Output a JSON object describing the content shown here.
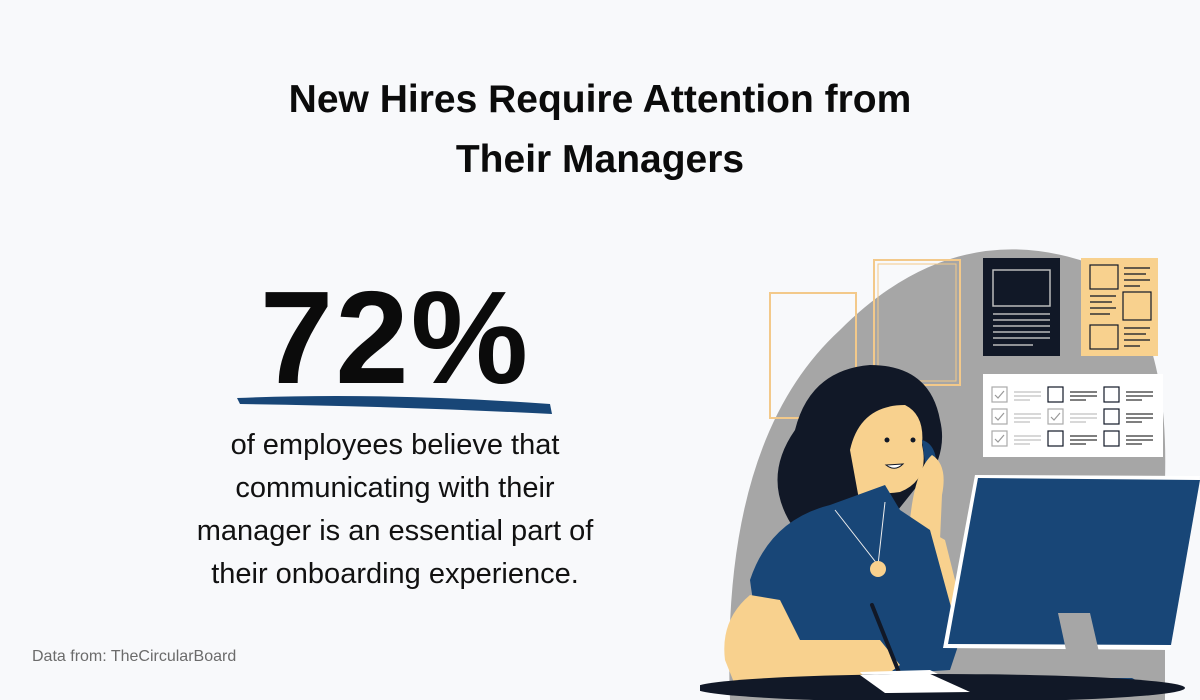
{
  "title": {
    "line1": "New Hires Require Attention from",
    "line2": "Their Managers"
  },
  "stat": {
    "value": "72%"
  },
  "description": {
    "lines": [
      "of employees believe that",
      "communicating with their",
      "manager is an essential part of",
      "their onboarding experience."
    ]
  },
  "source": "Data from: TheCircularBoard",
  "colors": {
    "accent_blue": "#184677",
    "dark_navy": "#111827",
    "skin": "#f8d18e",
    "gray_bg": "#a6a6a6",
    "background": "#f8f9fb"
  },
  "illustration": {
    "subject": "woman-on-phone-at-computer-icon"
  }
}
